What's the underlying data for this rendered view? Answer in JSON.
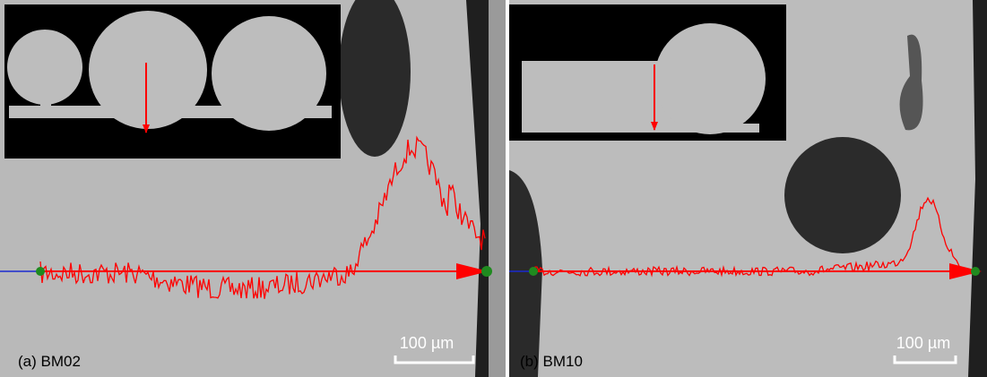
{
  "panels": [
    {
      "label": "(a) BM02",
      "scale_bar": "100 µm"
    },
    {
      "label": "(b) BM10",
      "scale_bar": "100 µm"
    }
  ]
}
